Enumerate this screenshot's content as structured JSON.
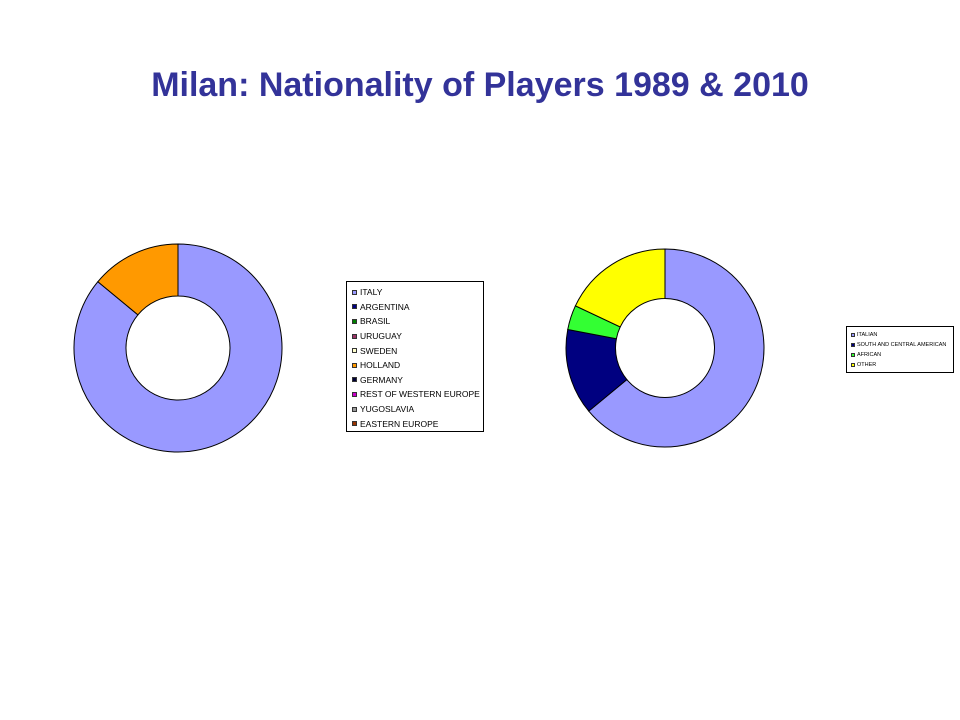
{
  "title": "Milan: Nationality of Players 1989 & 2010",
  "chart_data": [
    {
      "type": "pie",
      "variant": "donut",
      "legend_position": "right",
      "categories": [
        "ITALY",
        "ARGENTINA",
        "BRASIL",
        "URUGUAY",
        "SWEDEN",
        "HOLLAND",
        "GERMANY",
        "REST OF WESTERN EUROPE",
        "YUGOSLAVIA",
        "EASTERN EUROPE"
      ],
      "values": [
        86,
        0,
        0,
        0,
        0,
        14,
        0,
        0,
        0,
        0
      ],
      "colors": [
        "#9999ff",
        "#000080",
        "#008000",
        "#993366",
        "#ffffcc",
        "#ff9900",
        "#000033",
        "#cc00cc",
        "#999999",
        "#993300"
      ]
    },
    {
      "type": "pie",
      "variant": "donut",
      "legend_position": "right",
      "categories": [
        "ITALIAN",
        "SOUTH AND CENTRAL AMERICAN",
        "AFRICAN",
        "OTHER"
      ],
      "values": [
        64,
        14,
        4,
        18
      ],
      "colors": [
        "#9999ff",
        "#000080",
        "#33ff33",
        "#ffff00"
      ]
    }
  ]
}
